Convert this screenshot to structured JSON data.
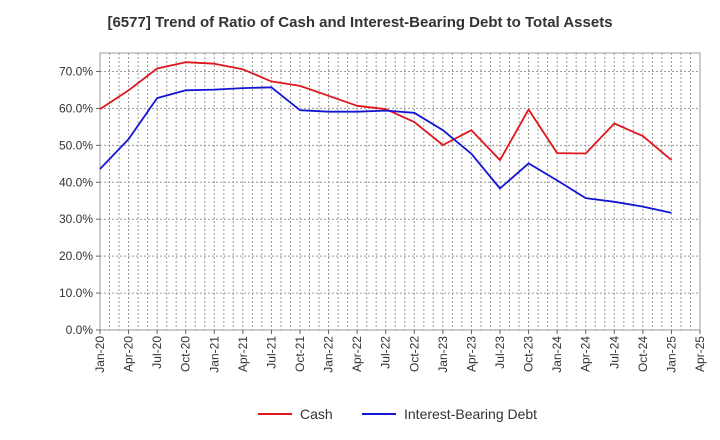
{
  "chart_data": {
    "type": "line",
    "title": "[6577]  Trend of Ratio of Cash and Interest-Bearing Debt to Total Assets",
    "xlabel": "",
    "ylabel": "",
    "x": [
      "Jan-20",
      "Apr-20",
      "Jul-20",
      "Oct-20",
      "Jan-21",
      "Apr-21",
      "Jul-21",
      "Oct-21",
      "Jan-22",
      "Apr-22",
      "Jul-22",
      "Oct-22",
      "Jan-23",
      "Apr-23",
      "Jul-23",
      "Oct-23",
      "Jan-24",
      "Apr-24",
      "Jul-24",
      "Oct-24",
      "Jan-25",
      "Apr-25"
    ],
    "y_ticks": [
      "0.0%",
      "10.0%",
      "20.0%",
      "30.0%",
      "40.0%",
      "50.0%",
      "60.0%",
      "70.0%"
    ],
    "ylim": [
      0,
      75
    ],
    "grid": true,
    "legend_position": "bottom",
    "series": [
      {
        "name": "Cash",
        "color": "#e0161e",
        "values": [
          59.8,
          64.9,
          70.8,
          72.5,
          72.1,
          70.6,
          67.3,
          66.1,
          63.4,
          60.7,
          59.8,
          56.3,
          50.1,
          54.1,
          46.0,
          59.7,
          47.9,
          47.8,
          55.9,
          52.5,
          46.0,
          null
        ]
      },
      {
        "name": "Interest-Bearing Debt",
        "color": "#1414d4",
        "values": [
          43.6,
          51.7,
          62.8,
          64.9,
          65.1,
          65.5,
          65.7,
          59.5,
          59.1,
          59.1,
          59.4,
          58.8,
          54.1,
          47.7,
          38.3,
          45.1,
          40.5,
          35.7,
          34.7,
          33.4,
          31.7,
          null
        ]
      }
    ]
  }
}
